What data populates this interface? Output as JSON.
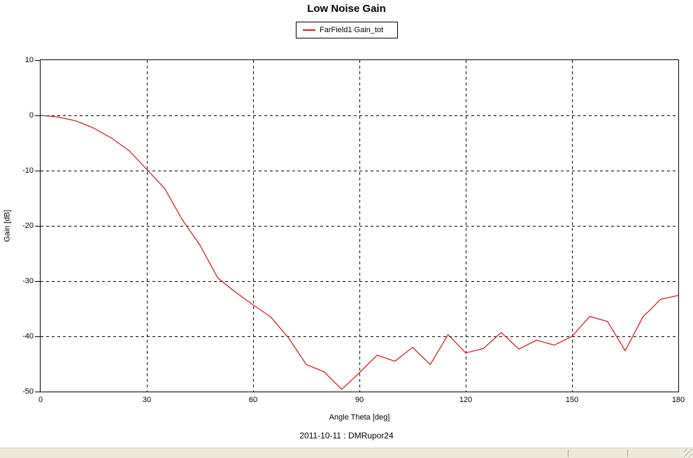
{
  "chart_data": {
    "type": "line",
    "title": "Low Noise Gain",
    "xlabel": "Angle Theta [deg]",
    "ylabel": "Gain [dB]",
    "footnote": "2011-10-11 : DMRupor24",
    "xlim": [
      0,
      180
    ],
    "ylim": [
      -50,
      10
    ],
    "xticks": [
      0,
      30,
      60,
      90,
      120,
      150,
      180
    ],
    "yticks": [
      10,
      0,
      -10,
      -20,
      -30,
      -40,
      -50
    ],
    "grid": "dashed",
    "grid_color": "#000000",
    "axis_color": "#000000",
    "legend_position": "top-center",
    "series": [
      {
        "name": "FarField1 Gain_tot",
        "color": "#c02828",
        "x": [
          0,
          5,
          10,
          15,
          20,
          25,
          30,
          35,
          40,
          45,
          50,
          55,
          60,
          65,
          70,
          75,
          80,
          85,
          90,
          95,
          100,
          105,
          110,
          115,
          120,
          125,
          130,
          135,
          140,
          145,
          150,
          155,
          160,
          165,
          170,
          175,
          180
        ],
        "y": [
          0.0,
          -0.3,
          -1.0,
          -2.3,
          -4.1,
          -6.4,
          -9.8,
          -13.2,
          -18.9,
          -23.5,
          -29.4,
          -32.0,
          -34.3,
          -36.5,
          -40.3,
          -45.1,
          -46.4,
          -49.6,
          -46.6,
          -43.4,
          -44.5,
          -42.0,
          -45.1,
          -39.7,
          -43.0,
          -42.2,
          -39.3,
          -42.3,
          -40.7,
          -41.6,
          -40.0,
          -36.4,
          -37.3,
          -42.6,
          -36.5,
          -33.3,
          -32.6
        ]
      }
    ]
  },
  "status_bar": {
    "background": "#ece9d8",
    "panels": [
      "",
      "",
      ""
    ]
  }
}
